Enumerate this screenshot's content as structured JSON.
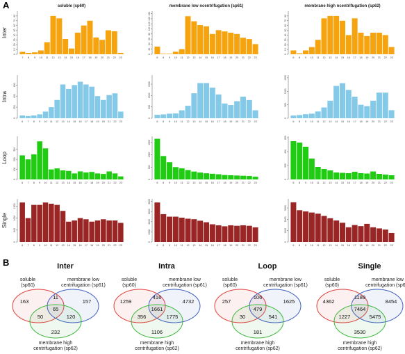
{
  "panel_labels": {
    "a": "A",
    "b": "B"
  },
  "colors": {
    "Inter": "#f5a30f",
    "Intra": "#84c9e8",
    "Loop": "#1fcc12",
    "Single": "#9a2525"
  },
  "column_titles": [
    "soluble (sp60)",
    "membrane low ncentrifugation (sp61)",
    "membrane high ncentrifugation (sp62)"
  ],
  "chart_data": [
    {
      "type": "bar",
      "row": "Inter",
      "column": "soluble (sp60)",
      "ylabel": "Inter",
      "categories": [
        "7",
        "8",
        "9",
        "10",
        "11",
        "12",
        "13",
        "14",
        "15",
        "16",
        "17",
        "18",
        "19",
        "20",
        "21",
        "22",
        "23"
      ],
      "values": [
        5,
        3,
        4,
        8,
        25,
        80,
        75,
        32,
        12,
        45,
        60,
        70,
        35,
        30,
        50,
        48,
        3
      ],
      "ylim": [
        0,
        90
      ],
      "yticks": [
        "0",
        "10",
        "20",
        "30",
        "40",
        "50",
        "60",
        "70",
        "80"
      ]
    },
    {
      "type": "bar",
      "row": "Inter",
      "column": "membrane low ncentrifugation (sp61)",
      "categories": [
        "6",
        "8",
        "9",
        "10",
        "11",
        "12",
        "13",
        "14",
        "15",
        "16",
        "17",
        "18",
        "19",
        "20",
        "21",
        "22",
        "23"
      ],
      "values": [
        30,
        2,
        2,
        10,
        20,
        150,
        130,
        115,
        110,
        80,
        95,
        90,
        85,
        80,
        65,
        60,
        40
      ],
      "ylim": [
        0,
        170
      ],
      "yticks": [
        "0",
        "20",
        "40",
        "60",
        "80",
        "100",
        "120",
        "140",
        "160"
      ]
    },
    {
      "type": "bar",
      "row": "Inter",
      "column": "membrane high ncentrifugation (sp62)",
      "categories": [
        "6",
        "8",
        "9",
        "10",
        "11",
        "12",
        "13",
        "14",
        "15",
        "16",
        "17",
        "18",
        "19",
        "20",
        "21",
        "22",
        "23"
      ],
      "values": [
        8,
        2,
        8,
        15,
        30,
        75,
        80,
        80,
        70,
        40,
        75,
        45,
        38,
        45,
        45,
        40,
        15
      ],
      "ylim": [
        0,
        90
      ],
      "yticks": [
        "0",
        "10",
        "20",
        "30",
        "40",
        "50",
        "60",
        "70",
        "80"
      ]
    },
    {
      "type": "bar",
      "row": "Intra",
      "column": "soluble (sp60)",
      "ylabel": "Intra",
      "categories": [
        "6",
        "7",
        "8",
        "9",
        "10",
        "11",
        "12",
        "13",
        "14",
        "15",
        "16",
        "17",
        "18",
        "19",
        "20",
        "21",
        "22",
        "23"
      ],
      "values": [
        50,
        40,
        50,
        70,
        120,
        200,
        330,
        610,
        530,
        600,
        660,
        610,
        570,
        400,
        330,
        420,
        450,
        120
      ],
      "ylim": [
        0,
        780
      ],
      "yticks": [
        "0",
        "200",
        "400",
        "600"
      ]
    },
    {
      "type": "bar",
      "row": "Intra",
      "column": "membrane low ncentrifugation (sp61)",
      "categories": [
        "6",
        "8",
        "9",
        "10",
        "11",
        "12",
        "13",
        "14",
        "15",
        "16",
        "17",
        "18",
        "19",
        "20",
        "21",
        "22",
        "23"
      ],
      "values": [
        150,
        170,
        200,
        210,
        350,
        550,
        1100,
        1550,
        1550,
        1350,
        1050,
        650,
        580,
        750,
        950,
        800,
        350
      ],
      "ylim": [
        0,
        1900
      ],
      "yticks": [
        "0",
        "500",
        "1000",
        "1500"
      ]
    },
    {
      "type": "bar",
      "row": "Intra",
      "column": "membrane high ncentrifugation (sp62)",
      "categories": [
        "6",
        "8",
        "9",
        "10",
        "11",
        "12",
        "13",
        "14",
        "15",
        "16",
        "17",
        "18",
        "19",
        "20",
        "21",
        "22",
        "23"
      ],
      "values": [
        100,
        120,
        150,
        170,
        250,
        400,
        650,
        1200,
        1300,
        1050,
        800,
        500,
        450,
        650,
        950,
        950,
        300
      ],
      "ylim": [
        0,
        1600
      ],
      "yticks": [
        "0",
        "500",
        "1000",
        "1500"
      ]
    },
    {
      "type": "bar",
      "row": "Loop",
      "column": "soluble (sp60)",
      "ylabel": "Loop",
      "categories": [
        "6",
        "7",
        "8",
        "9",
        "10",
        "11",
        "12",
        "13",
        "14",
        "15",
        "16",
        "17",
        "18",
        "19",
        "20",
        "21",
        "22",
        "23"
      ],
      "values": [
        240,
        200,
        250,
        380,
        310,
        100,
        110,
        90,
        85,
        60,
        80,
        70,
        75,
        60,
        55,
        80,
        60,
        30
      ],
      "ylim": [
        0,
        430
      ],
      "yticks": [
        "0",
        "100",
        "200",
        "300"
      ]
    },
    {
      "type": "bar",
      "row": "Loop",
      "column": "membrane low ncentrifugation (sp61)",
      "categories": [
        "6",
        "8",
        "9",
        "10",
        "11",
        "12",
        "13",
        "14",
        "15",
        "16",
        "17",
        "18",
        "19",
        "20",
        "21",
        "22",
        "23"
      ],
      "values": [
        1650,
        950,
        700,
        500,
        450,
        380,
        320,
        280,
        250,
        230,
        210,
        180,
        170,
        160,
        150,
        140,
        110
      ],
      "ylim": [
        0,
        1750
      ],
      "yticks": [
        "0",
        "500",
        "1000",
        "1500"
      ]
    },
    {
      "type": "bar",
      "row": "Loop",
      "column": "membrane high ncentrifugation (sp62)",
      "categories": [
        "6",
        "8",
        "9",
        "10",
        "11",
        "12",
        "13",
        "14",
        "15",
        "16",
        "17",
        "18",
        "19",
        "20",
        "21",
        "22",
        "23"
      ],
      "values": [
        550,
        530,
        470,
        300,
        180,
        150,
        130,
        100,
        95,
        90,
        110,
        90,
        85,
        115,
        80,
        70,
        60
      ],
      "ylim": [
        0,
        620
      ],
      "yticks": [
        "0",
        "200",
        "400",
        "600"
      ]
    },
    {
      "type": "bar",
      "row": "Single",
      "column": "soluble (sp60)",
      "ylabel": "Single",
      "categories": [
        "6",
        "7",
        "8",
        "9",
        "10",
        "11",
        "12",
        "13",
        "14",
        "15",
        "16",
        "17",
        "18",
        "19",
        "20",
        "21",
        "22",
        "23"
      ],
      "values": [
        1650,
        1000,
        1550,
        1550,
        1650,
        1600,
        1550,
        1300,
        850,
        900,
        1000,
        950,
        850,
        900,
        950,
        900,
        900,
        800
      ],
      "ylim": [
        0,
        1800
      ],
      "yticks": [
        "0",
        "500",
        "1000",
        "1500"
      ]
    },
    {
      "type": "bar",
      "row": "Single",
      "column": "membrane low ncentrifugation (sp61)",
      "categories": [
        "6",
        "8",
        "9",
        "10",
        "11",
        "12",
        "13",
        "14",
        "15",
        "16",
        "17",
        "18",
        "19",
        "20",
        "21",
        "22",
        "23"
      ],
      "values": [
        7800,
        5500,
        5000,
        5000,
        4800,
        4600,
        4500,
        4200,
        3900,
        3500,
        3300,
        3100,
        3300,
        3200,
        3300,
        3200,
        2900
      ],
      "ylim": [
        0,
        8500
      ],
      "yticks": [
        "0",
        "2000",
        "4000",
        "6000",
        "8000"
      ]
    },
    {
      "type": "bar",
      "row": "Single",
      "column": "membrane high ncentrifugation (sp62)",
      "categories": [
        "6",
        "8",
        "9",
        "10",
        "11",
        "12",
        "13",
        "14",
        "15",
        "16",
        "17",
        "18",
        "19",
        "20",
        "21",
        "22",
        "23"
      ],
      "values": [
        3500,
        2800,
        2700,
        2600,
        2500,
        2300,
        2100,
        1900,
        1700,
        1300,
        1500,
        1400,
        1600,
        1300,
        1200,
        1100,
        800
      ],
      "ylim": [
        0,
        3800
      ],
      "yticks": [
        "0",
        "1000",
        "2000",
        "3000"
      ]
    }
  ],
  "venn": [
    {
      "title": "Inter",
      "only_a": "163",
      "only_b": "157",
      "only_c": "232",
      "ab": "11",
      "ac": "50",
      "bc": "120",
      "abc": "65"
    },
    {
      "title": "Intra",
      "only_a": "1259",
      "only_b": "4732",
      "only_c": "1106",
      "ab": "416",
      "ac": "356",
      "bc": "1775",
      "abc": "1661"
    },
    {
      "title": "Loop",
      "only_a": "257",
      "only_b": "1625",
      "only_c": "181",
      "ab": "106",
      "ac": "30",
      "bc": "541",
      "abc": "479"
    },
    {
      "title": "Single",
      "only_a": "4362",
      "only_b": "8454",
      "only_c": "3530",
      "ab": "1189",
      "ac": "1227",
      "bc": "5475",
      "abc": "7464"
    }
  ],
  "venn_labels": {
    "a": [
      "soluble",
      "(sp60)"
    ],
    "b": [
      "membrane low",
      "centrifugation (sp61)"
    ],
    "c": [
      "membrane high",
      "centrifugation (sp62)"
    ]
  },
  "venn_colors": {
    "a": "#e0403c",
    "b": "#4060c0",
    "c": "#3fb83f"
  }
}
